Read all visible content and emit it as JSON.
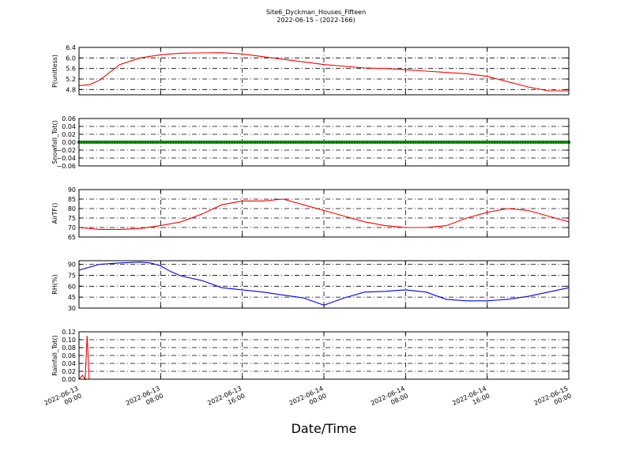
{
  "figure": {
    "title": "Site6_Dyckman_Houses_Fifteen",
    "subtitle": "2022-06-15 - (2022-166)",
    "xlabel": "Date/Time"
  },
  "chart_data": {
    "type": "line",
    "title": "Site6_Dyckman_Houses_Fifteen",
    "subtitle": "2022-06-15 - (2022-166)",
    "xlabel": "Date/Time",
    "x_range": [
      "2022-06-13 00:00",
      "2022-06-15 00:00"
    ],
    "x_ticks": [
      {
        "value": "2022-06-13 00:00",
        "label": [
          "2022-06-13",
          "00:00"
        ]
      },
      {
        "value": "2022-06-13 08:00",
        "label": [
          "2022-06-13",
          "08:00"
        ]
      },
      {
        "value": "2022-06-13 16:00",
        "label": [
          "2022-06-13",
          "16:00"
        ]
      },
      {
        "value": "2022-06-14 00:00",
        "label": [
          "2022-06-14",
          "00:00"
        ]
      },
      {
        "value": "2022-06-14 08:00",
        "label": [
          "2022-06-14",
          "08:00"
        ]
      },
      {
        "value": "2022-06-14 16:00",
        "label": [
          "2022-06-14",
          "16:00"
        ]
      },
      {
        "value": "2022-06-15 00:00",
        "label": [
          "2022-06-15",
          "00:00"
        ]
      }
    ],
    "grid": true,
    "panels": [
      {
        "ylabel": "P(unitless)",
        "ylim": [
          4.6,
          6.4
        ],
        "yticks": [
          "6.4",
          "6.0",
          "5.6",
          "5.2",
          "4.8"
        ],
        "color": "#ff0000",
        "type": "line",
        "hours": [
          0,
          1,
          2,
          3,
          4,
          6,
          8,
          10,
          14,
          16,
          18,
          22,
          24,
          28,
          30,
          32,
          34,
          36,
          38,
          40,
          42,
          44,
          46,
          48
        ],
        "values": [
          4.95,
          4.98,
          5.15,
          5.45,
          5.75,
          6.0,
          6.12,
          6.18,
          6.2,
          6.15,
          6.05,
          5.85,
          5.75,
          5.62,
          5.6,
          5.55,
          5.5,
          5.45,
          5.4,
          5.3,
          5.1,
          4.9,
          4.75,
          4.75
        ]
      },
      {
        "ylabel": "Snowfall_Tot()",
        "ylim": [
          -0.06,
          0.06
        ],
        "yticks": [
          "0.06",
          "0.04",
          "0.02",
          "0.00",
          "−0.02",
          "−0.04",
          "−0.06"
        ],
        "color": "#008000",
        "type": "scatter",
        "hours": [
          0,
          48
        ],
        "values": [
          0.0,
          0.0
        ]
      },
      {
        "ylabel": "AirTF()",
        "ylim": [
          65,
          90
        ],
        "yticks": [
          "90",
          "85",
          "80",
          "75",
          "70",
          "65"
        ],
        "color": "#ff0000",
        "type": "line",
        "hours": [
          0,
          2,
          4,
          6,
          8,
          10,
          12,
          14,
          16,
          18,
          20,
          22,
          24,
          26,
          28,
          30,
          32,
          34,
          36,
          38,
          40,
          42,
          44,
          46,
          48
        ],
        "values": [
          70,
          69,
          69,
          69.5,
          71,
          73,
          77,
          82,
          84,
          84,
          85,
          82,
          79,
          76,
          73,
          71,
          70,
          70,
          71,
          75,
          78,
          80,
          79,
          76,
          73
        ]
      },
      {
        "ylabel": "RH(%)",
        "ylim": [
          30,
          95
        ],
        "yticks": [
          "90",
          "75",
          "60",
          "45",
          "30"
        ],
        "color": "#0000ff",
        "type": "line",
        "hours": [
          0,
          2,
          4,
          6,
          7,
          8,
          9,
          10,
          12,
          14,
          16,
          18,
          20,
          22,
          24,
          26,
          28,
          30,
          32,
          34,
          36,
          38,
          40,
          42,
          44,
          46,
          48
        ],
        "values": [
          82,
          90,
          92,
          93,
          92,
          88,
          80,
          74,
          68,
          58,
          55,
          52,
          48,
          44,
          34,
          44,
          52,
          53,
          55,
          52,
          42,
          40,
          40,
          42,
          46,
          52,
          58
        ]
      },
      {
        "ylabel": "Rainfall_Tot()",
        "ylim": [
          0.0,
          0.12
        ],
        "yticks": [
          "0.12",
          "0.10",
          "0.08",
          "0.06",
          "0.04",
          "0.02",
          "0.00"
        ],
        "color": "#ff0000",
        "type": "line",
        "hours": [
          0,
          0.35,
          0.6,
          0.8,
          1.0,
          1.2,
          48
        ],
        "values": [
          0.0,
          0.01,
          0.0,
          0.11,
          0.0,
          0.0,
          0.0
        ]
      }
    ]
  }
}
